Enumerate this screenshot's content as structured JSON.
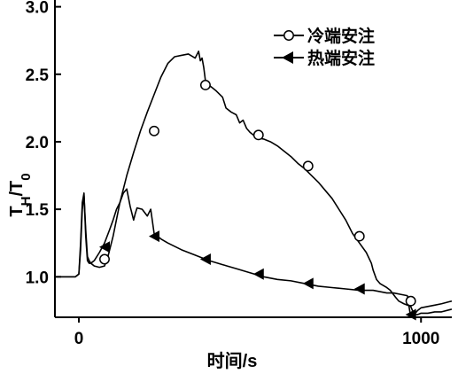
{
  "chart_data": {
    "type": "line",
    "title": "",
    "xlabel": "时间/s",
    "ylabel_main": "T",
    "ylabel_sub1": "H",
    "ylabel_sep": "/T",
    "ylabel_sub2": "0",
    "xlim": [
      -70,
      1090
    ],
    "ylim": [
      0.7,
      3.05
    ],
    "xticks": [
      0,
      1000
    ],
    "xtick_labels": [
      "0",
      "1000"
    ],
    "yticks": [
      1.0,
      1.5,
      2.0,
      2.5,
      3.0
    ],
    "ytick_labels": [
      "1.0",
      "1.5",
      "2.0",
      "2.5",
      "3.0"
    ],
    "grid": false,
    "legend_placement": "top-right",
    "colors": {
      "line": "#000000",
      "marker_face_hollow": "#ffffff",
      "marker_face_filled": "#000000",
      "text": "#000000"
    },
    "series": [
      {
        "name": "冷端安注",
        "marker": "circle-open",
        "x": [
          -70,
          -10,
          0,
          5,
          10,
          15,
          20,
          25,
          30,
          35,
          45,
          60,
          75,
          85,
          100,
          120,
          140,
          160,
          180,
          200,
          220,
          240,
          260,
          280,
          300,
          320,
          340,
          350,
          355,
          360,
          365,
          370,
          380,
          390,
          400,
          420,
          430,
          445,
          460,
          470,
          480,
          490,
          500,
          520,
          540,
          560,
          580,
          600,
          620,
          640,
          660,
          680,
          700,
          720,
          740,
          760,
          780,
          800,
          820,
          840,
          855,
          860,
          870,
          880,
          900,
          910,
          925,
          935,
          950,
          970,
          980,
          990,
          1000,
          1020,
          1040,
          1060,
          1090
        ],
        "y": [
          1.0,
          1.0,
          1.02,
          1.2,
          1.5,
          1.6,
          1.35,
          1.15,
          1.12,
          1.1,
          1.08,
          1.07,
          1.08,
          1.15,
          1.3,
          1.55,
          1.75,
          1.92,
          2.08,
          2.22,
          2.35,
          2.48,
          2.58,
          2.63,
          2.64,
          2.65,
          2.62,
          2.67,
          2.6,
          2.62,
          2.55,
          2.45,
          2.42,
          2.4,
          2.38,
          2.33,
          2.25,
          2.22,
          2.2,
          2.14,
          2.16,
          2.1,
          2.07,
          2.03,
          2.02,
          2.0,
          1.97,
          1.93,
          1.89,
          1.84,
          1.8,
          1.75,
          1.7,
          1.64,
          1.58,
          1.5,
          1.42,
          1.32,
          1.25,
          1.18,
          1.1,
          1.05,
          0.98,
          0.95,
          0.92,
          0.9,
          0.85,
          0.82,
          0.8,
          0.78,
          0.72,
          0.75,
          0.77,
          0.78,
          0.79,
          0.8,
          0.82
        ],
        "marker_x": [
          75,
          220,
          370,
          525,
          670,
          820,
          970
        ],
        "marker_y": [
          1.13,
          2.08,
          2.42,
          2.05,
          1.82,
          1.3,
          0.82
        ]
      },
      {
        "name": "热端安注",
        "marker": "triangle-left-filled",
        "x": [
          -70,
          -10,
          0,
          5,
          10,
          15,
          20,
          25,
          30,
          35,
          45,
          60,
          75,
          90,
          100,
          110,
          120,
          130,
          140,
          150,
          160,
          165,
          170,
          185,
          200,
          210,
          220,
          240,
          260,
          300,
          340,
          380,
          420,
          460,
          500,
          540,
          580,
          620,
          660,
          700,
          740,
          780,
          820,
          860,
          880,
          900,
          920,
          940,
          960,
          970,
          980,
          990,
          1000,
          1020,
          1040,
          1060,
          1090
        ],
        "y": [
          1.0,
          1.0,
          1.02,
          1.25,
          1.55,
          1.62,
          1.3,
          1.12,
          1.1,
          1.1,
          1.12,
          1.18,
          1.25,
          1.35,
          1.42,
          1.5,
          1.55,
          1.62,
          1.65,
          1.52,
          1.42,
          1.47,
          1.51,
          1.5,
          1.45,
          1.5,
          1.32,
          1.28,
          1.25,
          1.2,
          1.16,
          1.12,
          1.09,
          1.06,
          1.03,
          1.0,
          0.98,
          0.97,
          0.95,
          0.93,
          0.92,
          0.91,
          0.9,
          0.9,
          0.89,
          0.88,
          0.88,
          0.87,
          0.86,
          0.7,
          0.72,
          0.72,
          0.73,
          0.73,
          0.74,
          0.74,
          0.76
        ],
        "marker_x": [
          75,
          220,
          370,
          525,
          670,
          820,
          970
        ],
        "marker_y": [
          1.22,
          1.3,
          1.13,
          1.02,
          0.95,
          0.91,
          0.72
        ]
      }
    ]
  }
}
